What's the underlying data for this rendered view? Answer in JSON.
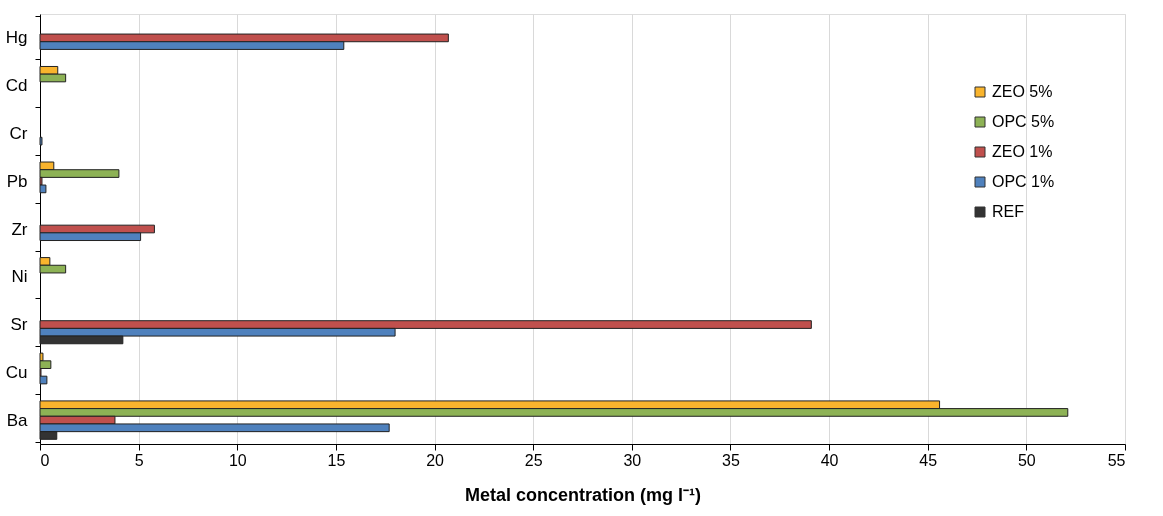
{
  "chart_data": {
    "type": "bar",
    "orientation": "horizontal",
    "xlabel": "Metal concentration (mg l⁻¹)",
    "categories": [
      "Hg",
      "Cd",
      "Cr",
      "Pb",
      "Zr",
      "Ni",
      "Sr",
      "Cu",
      "Ba"
    ],
    "series": [
      {
        "name": "ZEO 5%",
        "color": "#f9b42d",
        "values": [
          null,
          0.9,
          null,
          0.7,
          null,
          0.5,
          null,
          0.15,
          45.6
        ]
      },
      {
        "name": "OPC 5%",
        "color": "#8db255",
        "values": [
          null,
          1.3,
          null,
          4.0,
          null,
          1.3,
          null,
          0.55,
          52.1
        ]
      },
      {
        "name": "ZEO 1%",
        "color": "#c0504d",
        "values": [
          20.7,
          null,
          null,
          0.1,
          5.8,
          null,
          39.1,
          0.05,
          3.8
        ]
      },
      {
        "name": "OPC 1%",
        "color": "#4f81bd",
        "values": [
          15.4,
          null,
          0.1,
          0.3,
          5.1,
          null,
          18.0,
          0.35,
          17.7
        ]
      },
      {
        "name": "REF",
        "color": "#333333",
        "values": [
          null,
          null,
          null,
          null,
          null,
          null,
          4.2,
          null,
          0.85
        ]
      }
    ],
    "xlim": [
      0,
      55
    ],
    "xticks": [
      0,
      5,
      10,
      15,
      20,
      25,
      30,
      35,
      40,
      45,
      50,
      55
    ],
    "grid": "x",
    "legend": "top right"
  }
}
